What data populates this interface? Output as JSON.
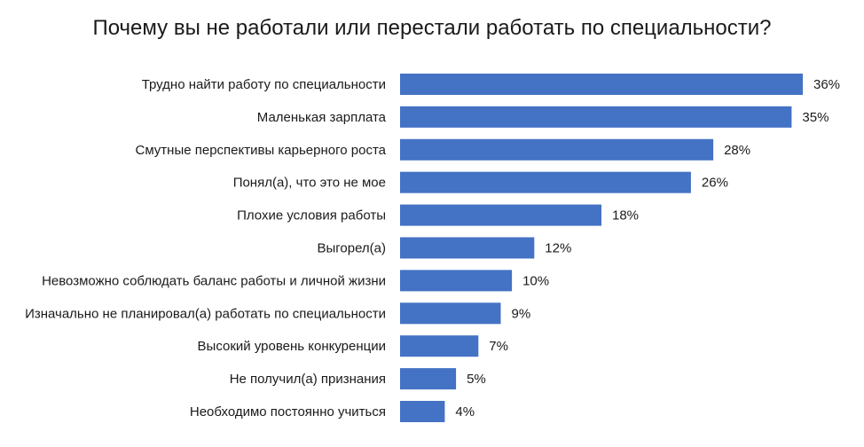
{
  "chart_data": {
    "type": "bar",
    "orientation": "horizontal",
    "title": "Почему вы не работали или перестали работать по специальности?",
    "categories": [
      "Трудно найти работу по специальности",
      "Маленькая зарплата",
      "Смутные перспективы карьерного роста",
      "Понял(а), что это не мое",
      "Плохие условия работы",
      "Выгорел(а)",
      "Невозможно соблюдать баланс работы и личной жизни",
      "Изначально не планировал(а) работать по специальности",
      "Высокий уровень конкуренции",
      "Не получил(а) признания",
      "Необходимо постоянно учиться"
    ],
    "values": [
      36,
      35,
      28,
      26,
      18,
      12,
      10,
      9,
      7,
      5,
      4
    ],
    "value_labels": [
      "36%",
      "35%",
      "28%",
      "26%",
      "18%",
      "12%",
      "10%",
      "9%",
      "7%",
      "5%",
      "4%"
    ],
    "unit": "%",
    "xlim": [
      0,
      36
    ],
    "grid": false,
    "legend": "none",
    "bar_color": "#4472C4"
  }
}
